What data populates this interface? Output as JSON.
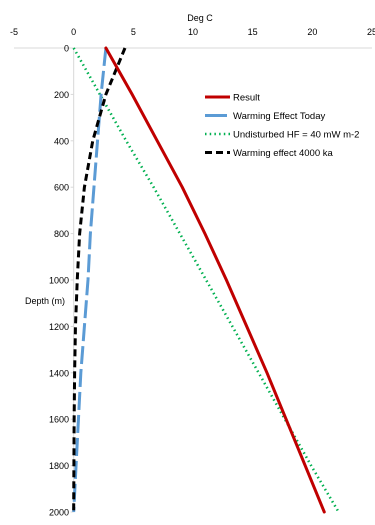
{
  "chart_data": {
    "type": "line",
    "title": "",
    "xlabel": "Deg C",
    "ylabel": "Depth (m)",
    "xlim": [
      -5,
      25
    ],
    "ylim": [
      0,
      2000
    ],
    "y_inverted": true,
    "x_axis_position": "top",
    "x_ticks": [
      "-5",
      "0",
      "5",
      "10",
      "15",
      "20",
      "25"
    ],
    "y_ticks": [
      "0",
      "200",
      "400",
      "600",
      "800",
      "1000",
      "1200",
      "1400",
      "1600",
      "1800",
      "2000"
    ],
    "grid": false,
    "legend_position": "top-right",
    "series": [
      {
        "name": "Result",
        "color": "#c00000",
        "style": "solid",
        "points": [
          [
            2.7,
            0
          ],
          [
            4.9,
            200
          ],
          [
            7.0,
            400
          ],
          [
            9.1,
            600
          ],
          [
            11.0,
            800
          ],
          [
            12.8,
            1000
          ],
          [
            14.5,
            1200
          ],
          [
            16.2,
            1400
          ],
          [
            17.8,
            1600
          ],
          [
            19.4,
            1800
          ],
          [
            21.0,
            2000
          ]
        ]
      },
      {
        "name": "Warming Effect Today",
        "color": "#5b9bd5",
        "style": "dashed",
        "points": [
          [
            2.7,
            0
          ],
          [
            2.3,
            200
          ],
          [
            2.0,
            400
          ],
          [
            1.7,
            600
          ],
          [
            1.4,
            800
          ],
          [
            1.2,
            1000
          ],
          [
            0.9,
            1200
          ],
          [
            0.6,
            1400
          ],
          [
            0.4,
            1600
          ],
          [
            0.2,
            1800
          ],
          [
            0.0,
            2000
          ]
        ]
      },
      {
        "name": "Undisturbed HF = 40 mW m-2",
        "color": "#00b050",
        "style": "dotted",
        "points": [
          [
            0,
            0
          ],
          [
            2.2,
            200
          ],
          [
            4.4,
            400
          ],
          [
            6.7,
            600
          ],
          [
            8.9,
            800
          ],
          [
            11.1,
            1000
          ],
          [
            13.3,
            1200
          ],
          [
            15.5,
            1400
          ],
          [
            17.7,
            1600
          ],
          [
            19.9,
            1800
          ],
          [
            22.2,
            2000
          ]
        ]
      },
      {
        "name": "Warming effect 4000 ka",
        "color": "#000000",
        "style": "dashed",
        "points": [
          [
            4.3,
            0
          ],
          [
            2.7,
            200
          ],
          [
            1.6,
            400
          ],
          [
            0.9,
            600
          ],
          [
            0.5,
            800
          ],
          [
            0.3,
            1000
          ],
          [
            0.15,
            1200
          ],
          [
            0.08,
            1400
          ],
          [
            0.04,
            1600
          ],
          [
            0.02,
            1800
          ],
          [
            0.0,
            2000
          ]
        ]
      }
    ]
  }
}
